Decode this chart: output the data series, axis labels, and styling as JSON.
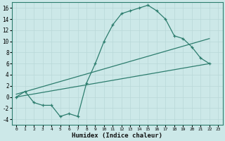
{
  "xlabel": "Humidex (Indice chaleur)",
  "xlim": [
    -0.5,
    23.5
  ],
  "ylim": [
    -5,
    17
  ],
  "yticks": [
    -4,
    -2,
    0,
    2,
    4,
    6,
    8,
    10,
    12,
    14,
    16
  ],
  "xticks": [
    0,
    1,
    2,
    3,
    4,
    5,
    6,
    7,
    8,
    9,
    10,
    11,
    12,
    13,
    14,
    15,
    16,
    17,
    18,
    19,
    20,
    21,
    22,
    23
  ],
  "line_color": "#2d7d6e",
  "bg_color": "#cce8e8",
  "grid_color": "#b8d8d8",
  "curve": {
    "x": [
      0,
      1,
      2,
      3,
      4,
      5,
      6,
      7,
      8,
      9,
      10,
      11,
      12,
      13,
      14,
      15,
      16,
      17,
      18,
      19,
      20,
      21,
      22
    ],
    "y": [
      0,
      1,
      -1,
      -1.5,
      -1.5,
      -3.5,
      -3.0,
      -3.5,
      2.5,
      6.0,
      10.0,
      13.0,
      15.0,
      15.5,
      16.0,
      16.5,
      15.5,
      14.0,
      11.0,
      10.5,
      9.0,
      7.0,
      6.0
    ]
  },
  "line_low": {
    "x": [
      0,
      22
    ],
    "y": [
      0.0,
      6.0
    ]
  },
  "line_high": {
    "x": [
      0,
      22
    ],
    "y": [
      0.5,
      10.5
    ]
  }
}
